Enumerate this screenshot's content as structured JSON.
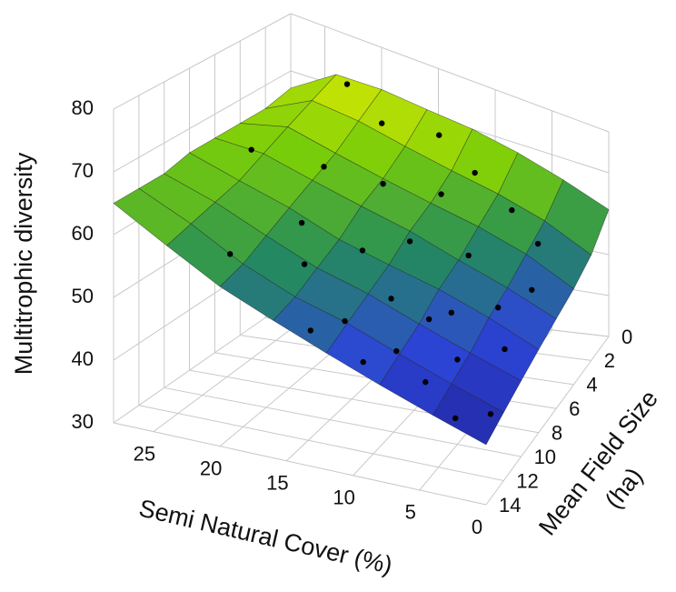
{
  "chart_data": {
    "type": "surface3d",
    "xlabel": "Semi Natural Cover (%)",
    "ylabel": [
      "Mean Field Size",
      "(ha)"
    ],
    "zlabel": "Multitrophic diversity",
    "xlim": [
      0,
      28
    ],
    "ylim": [
      0,
      14
    ],
    "zlim": [
      30,
      80
    ],
    "xticks": [
      0,
      5,
      10,
      15,
      20,
      25
    ],
    "yticks": [
      0,
      2,
      4,
      6,
      8,
      10,
      12,
      14
    ],
    "zticks": [
      30,
      40,
      50,
      60,
      70,
      80
    ],
    "grid": true,
    "surface": {
      "x": [
        0,
        4,
        8,
        12,
        16,
        20,
        24,
        28
      ],
      "y": [
        0,
        2,
        4,
        6,
        8,
        10,
        12,
        14
      ],
      "z": [
        [
          61,
          65,
          68,
          70,
          71,
          72,
          72,
          67
        ],
        [
          55,
          60,
          63,
          65,
          67,
          69,
          70,
          66
        ],
        [
          52,
          57,
          60,
          62,
          64,
          66,
          68,
          66
        ],
        [
          50,
          54,
          57,
          60,
          62,
          64,
          66,
          66
        ],
        [
          48,
          52,
          55,
          57,
          59,
          62,
          64,
          66
        ],
        [
          46,
          49,
          52,
          55,
          57,
          60,
          63,
          65
        ],
        [
          44,
          47,
          50,
          53,
          55,
          58,
          62,
          65
        ],
        [
          42,
          45,
          48,
          51,
          54,
          57,
          61,
          65
        ]
      ]
    },
    "points": {
      "color": "#000000",
      "x": [
        22,
        18,
        14,
        10,
        6,
        3,
        25,
        20,
        16,
        12,
        8,
        4,
        2,
        19,
        15,
        11,
        7,
        5,
        1,
        13,
        9,
        17,
        21,
        3,
        6,
        10,
        14,
        2,
        8,
        12
      ],
      "y": [
        1,
        2,
        1,
        2,
        3,
        4,
        6,
        5,
        4,
        6,
        5,
        7,
        9,
        8,
        7,
        9,
        8,
        10,
        12,
        11,
        11,
        10,
        12,
        13,
        12,
        13,
        13,
        6,
        9,
        3
      ],
      "z": [
        73,
        70,
        69,
        66,
        63,
        60,
        66,
        65,
        63,
        58,
        56,
        52,
        49,
        60,
        56,
        53,
        51,
        47,
        43,
        51,
        48,
        57,
        59,
        43,
        46,
        49,
        52,
        55,
        51,
        62
      ]
    }
  }
}
